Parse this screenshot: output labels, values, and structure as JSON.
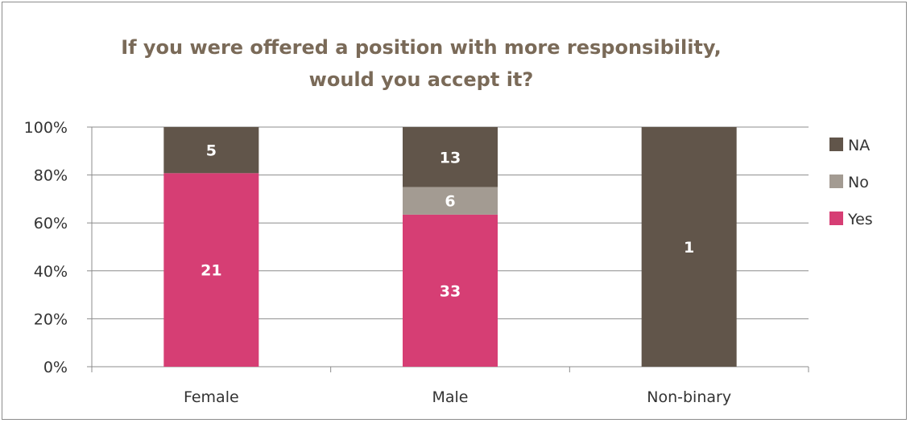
{
  "chart_data": {
    "type": "bar",
    "stacked": "percent",
    "title": "If you were offered a position with more responsibility, would you accept it?",
    "categories": [
      "Female",
      "Male",
      "Non-binary"
    ],
    "series": [
      {
        "name": "Yes",
        "values": [
          21,
          33,
          0
        ],
        "color": "#d63e74"
      },
      {
        "name": "No",
        "values": [
          0,
          6,
          0
        ],
        "color": "#a39b92"
      },
      {
        "name": "NA",
        "values": [
          5,
          13,
          1
        ],
        "color": "#61554a"
      }
    ],
    "ylim": [
      0,
      100
    ],
    "yticks": [
      "0%",
      "20%",
      "40%",
      "60%",
      "80%",
      "100%"
    ],
    "grid": true,
    "legend": "right",
    "legend_order": [
      "NA",
      "No",
      "Yes"
    ]
  }
}
